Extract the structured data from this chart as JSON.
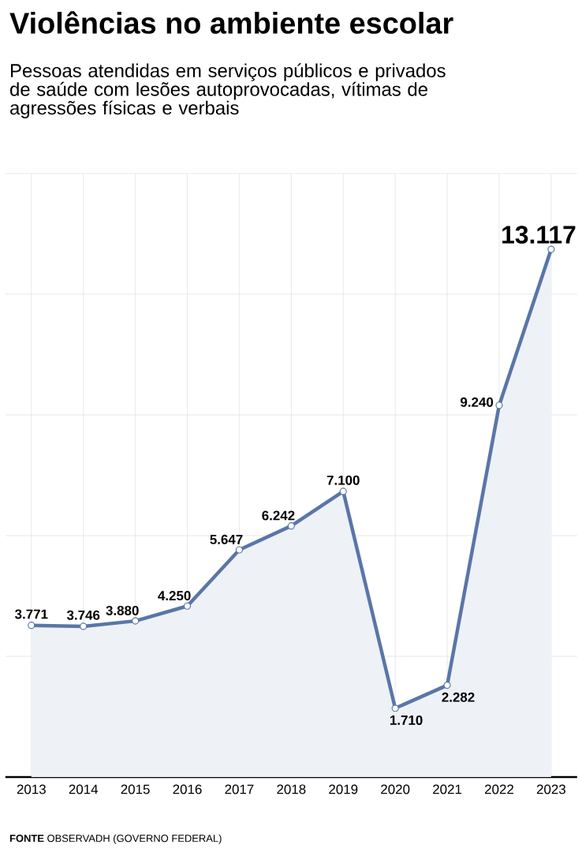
{
  "chart_data": {
    "type": "area",
    "title": "Violências no ambiente escolar",
    "subtitle": "Pessoas atendidas em serviços públicos e privados de saúde com lesões autoprovocadas, vítimas de agressões físicas e verbais",
    "categories": [
      "2013",
      "2014",
      "2015",
      "2016",
      "2017",
      "2018",
      "2019",
      "2020",
      "2021",
      "2022",
      "2023"
    ],
    "series": [
      {
        "color": "#5a76a8",
        "values": [
          3771,
          3746,
          3880,
          4250,
          5647,
          6242,
          7100,
          1710,
          2282,
          9240,
          13117
        ],
        "value_labels": [
          "3.771",
          "3.746",
          "3.880",
          "4.250",
          "5.647",
          "6.242",
          "7.100",
          "1.710",
          "2.282",
          "9.240",
          "13.117"
        ]
      }
    ],
    "ylim": [
      0,
      15000
    ],
    "yticks": [
      {
        "value": 3000,
        "label": null
      },
      {
        "value": 6000,
        "label": null
      },
      {
        "value": 9000,
        "label": null
      },
      {
        "value": 12000,
        "label": null
      },
      {
        "value": 15000,
        "label": null
      }
    ],
    "grid": true,
    "marker": "circle",
    "line_style": "solid",
    "tick_labels": "x",
    "annotations": [
      "**FONTE** OBSERVADH (GOVERNO FEDERAL)"
    ]
  }
}
